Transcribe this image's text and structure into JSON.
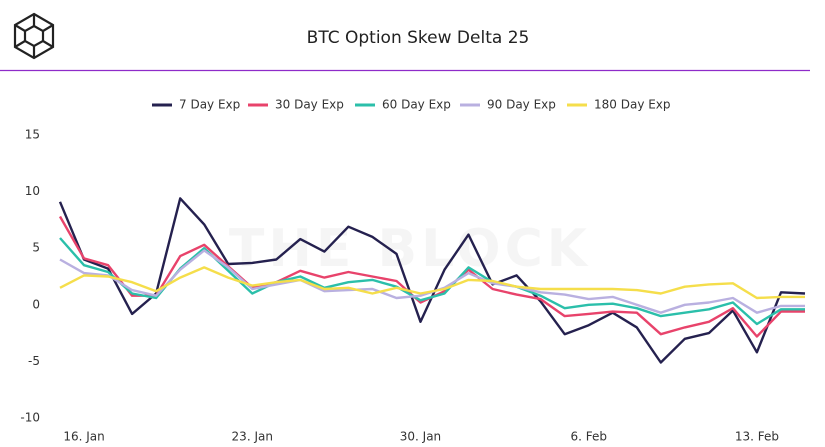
{
  "chart_data": {
    "type": "line",
    "title": "BTC Option Skew Delta 25",
    "watermark": "THE BLOCK",
    "categories": [
      null,
      "16. Jan",
      null,
      null,
      null,
      null,
      null,
      null,
      "23. Jan",
      null,
      null,
      null,
      null,
      null,
      null,
      "30. Jan",
      null,
      null,
      null,
      null,
      null,
      null,
      "6. Feb",
      null,
      null,
      null,
      null,
      null,
      null,
      "13. Feb",
      null,
      null
    ],
    "ylim": [
      -10,
      15
    ],
    "yticks": [
      -10,
      -5,
      0,
      5,
      10,
      15
    ],
    "grid": false,
    "legend": "top",
    "series": [
      {
        "name": "7 Day Exp",
        "color": "#25214f",
        "values": [
          9.1,
          4.0,
          3.2,
          -0.8,
          1.0,
          9.4,
          7.1,
          3.6,
          3.7,
          4.0,
          5.8,
          4.7,
          6.9,
          6.0,
          4.5,
          -1.5,
          3.1,
          6.2,
          1.8,
          2.6,
          0.3,
          -2.6,
          -1.8,
          -0.7,
          -2.0,
          -5.1,
          -3.0,
          -2.5,
          -0.5,
          -4.2,
          1.1,
          1.0
        ]
      },
      {
        "name": "30 Day Exp",
        "color": "#e8436b",
        "values": [
          7.8,
          4.1,
          3.5,
          0.8,
          0.8,
          4.3,
          5.3,
          3.4,
          1.5,
          2.0,
          3.0,
          2.4,
          2.9,
          2.5,
          2.1,
          0.2,
          1.2,
          3.1,
          1.4,
          0.9,
          0.5,
          -1.0,
          -0.8,
          -0.6,
          -0.7,
          -2.6,
          -2.0,
          -1.5,
          -0.3,
          -2.8,
          -0.6,
          -0.6
        ]
      },
      {
        "name": "60 Day Exp",
        "color": "#2bbfaa",
        "values": [
          5.9,
          3.5,
          2.9,
          1.0,
          0.6,
          3.2,
          5.0,
          3.0,
          1.0,
          2.0,
          2.5,
          1.5,
          2.0,
          2.2,
          1.6,
          0.4,
          1.0,
          3.3,
          2.0,
          1.6,
          0.8,
          -0.3,
          0.0,
          0.1,
          -0.3,
          -1.0,
          -0.7,
          -0.4,
          0.2,
          -1.7,
          -0.4,
          -0.4
        ]
      },
      {
        "name": "90 Day Exp",
        "color": "#b9b0e0",
        "values": [
          4.0,
          2.8,
          2.6,
          1.3,
          0.8,
          3.1,
          4.8,
          3.3,
          1.4,
          1.8,
          2.2,
          1.2,
          1.3,
          1.4,
          0.6,
          0.8,
          1.5,
          2.8,
          1.9,
          1.6,
          1.1,
          0.9,
          0.5,
          0.7,
          0.0,
          -0.7,
          0.0,
          0.2,
          0.6,
          -0.7,
          -0.1,
          -0.1
        ]
      },
      {
        "name": "180 Day Exp",
        "color": "#f5de4b",
        "values": [
          1.5,
          2.6,
          2.5,
          2.0,
          1.2,
          2.4,
          3.3,
          2.4,
          1.7,
          2.0,
          2.2,
          1.4,
          1.5,
          1.0,
          1.5,
          1.0,
          1.4,
          2.2,
          2.1,
          1.6,
          1.4,
          1.4,
          1.4,
          1.4,
          1.3,
          1.0,
          1.6,
          1.8,
          1.9,
          0.6,
          0.7,
          0.7
        ]
      }
    ]
  }
}
